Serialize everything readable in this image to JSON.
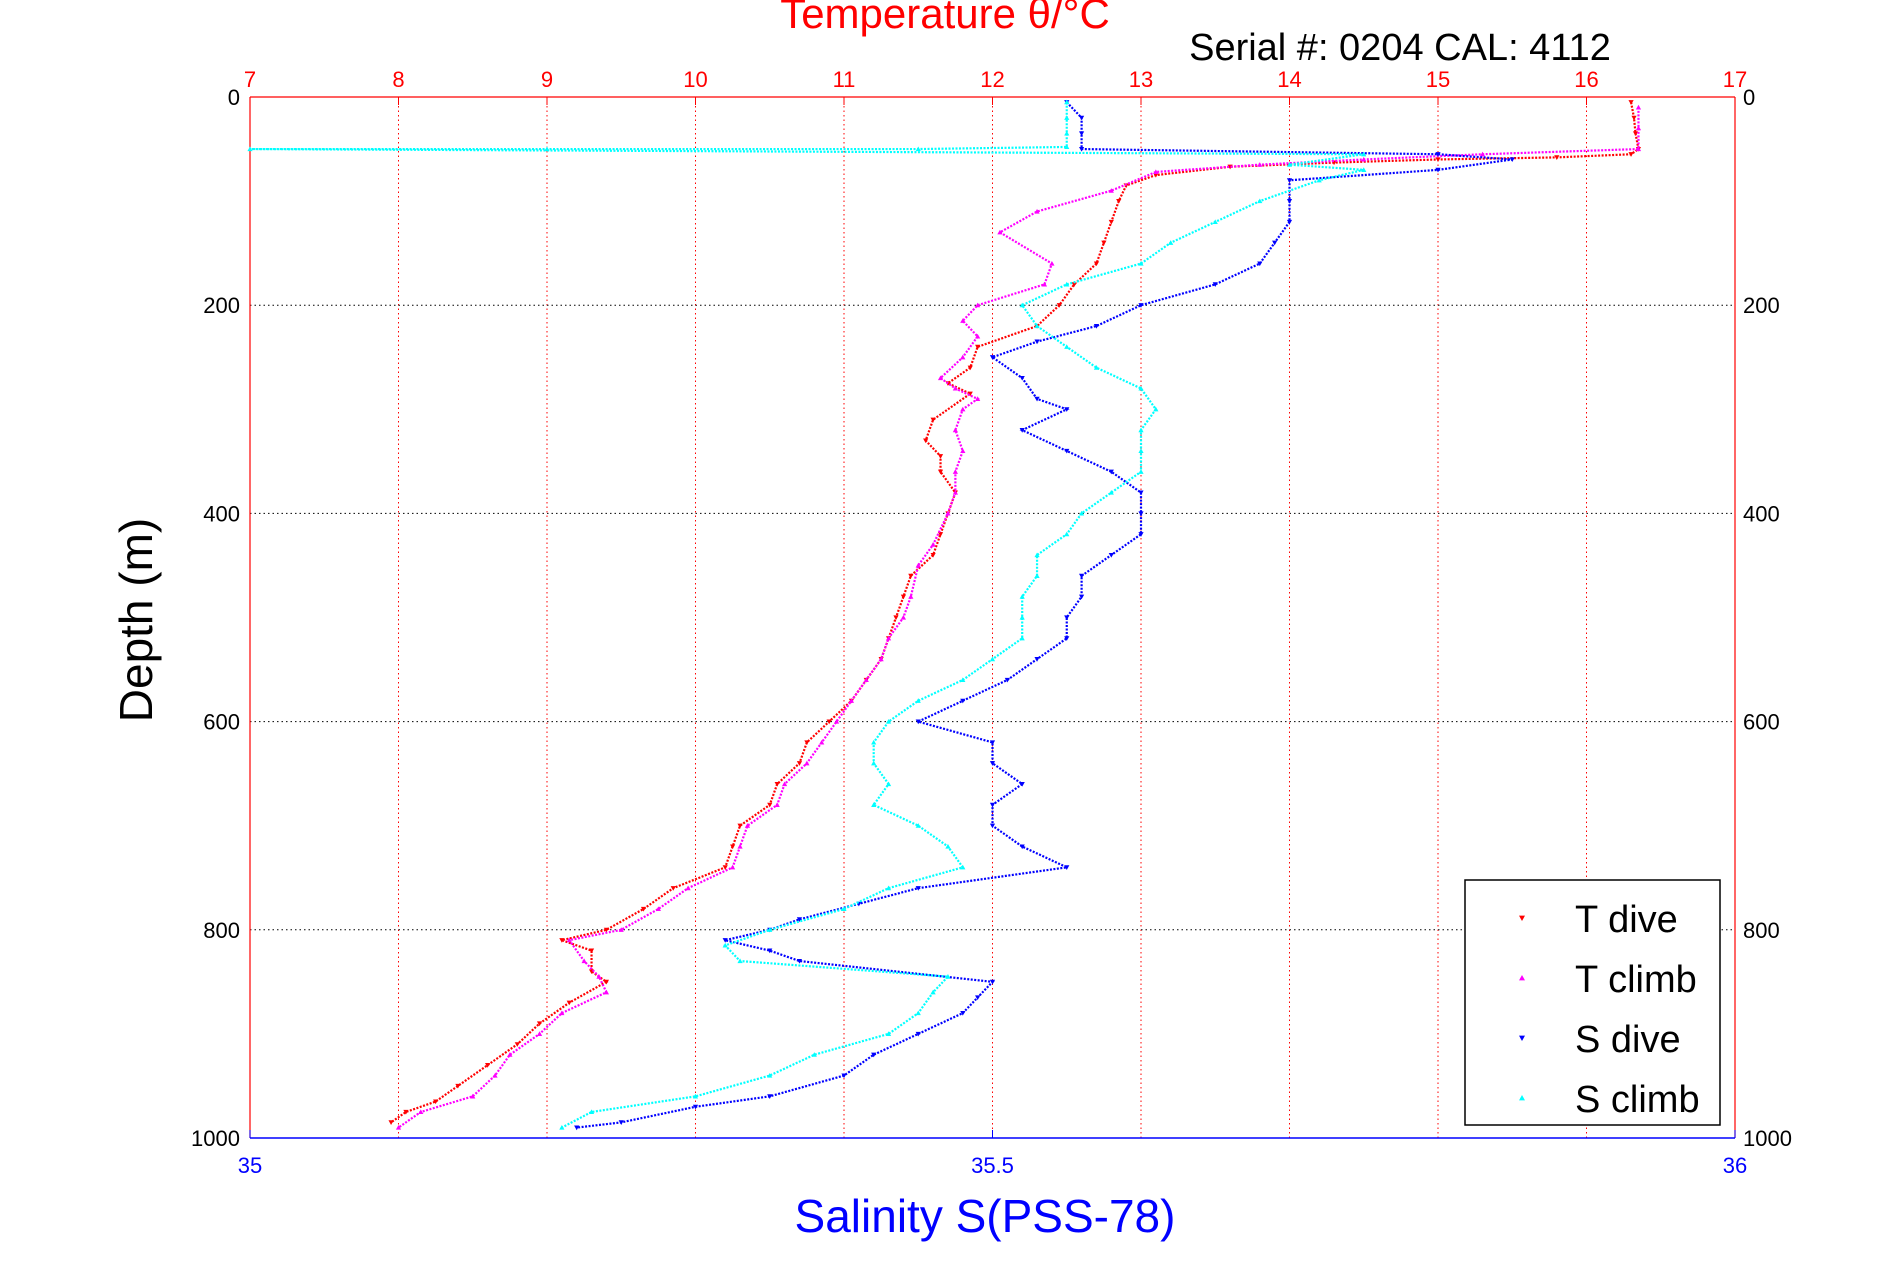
{
  "chart_data": {
    "type": "scatter",
    "title": "Temperature θ/°C",
    "subtitle": "Serial #: 0204  CAL: 4112",
    "xlabel": "Salinity S(PSS-78)",
    "ylabel": "Depth (m)",
    "temp_axis": {
      "min": 7,
      "max": 17,
      "ticks": [
        "7",
        "8",
        "9",
        "10",
        "11",
        "12",
        "13",
        "14",
        "15",
        "16",
        "17"
      ]
    },
    "sal_axis": {
      "min": 35,
      "max": 36,
      "ticks": [
        "35",
        "35.5",
        "36"
      ]
    },
    "depth_axis": {
      "min": 0,
      "max": 1000,
      "reversed": true,
      "ticks": [
        "0",
        "200",
        "400",
        "600",
        "800",
        "1000"
      ]
    },
    "grid": true,
    "legend_position": "bottom-right",
    "colors": {
      "title": "#ff0000",
      "temp_ticks": "#ff0000",
      "sal_ticks": "#0000ff",
      "xlabel": "#0000ff",
      "frame": "#ff0000",
      "bottom_axis": "#0000ff",
      "grid": "#ff0000"
    },
    "series": [
      {
        "name": "T dive",
        "axis": "temperature",
        "color": "#ff0000",
        "marker": "triangle-down",
        "points": [
          [
            16.3,
            5
          ],
          [
            16.32,
            20
          ],
          [
            16.33,
            35
          ],
          [
            16.35,
            50
          ],
          [
            16.3,
            55
          ],
          [
            15.8,
            58
          ],
          [
            15.0,
            60
          ],
          [
            14.3,
            63
          ],
          [
            13.6,
            67
          ],
          [
            13.1,
            75
          ],
          [
            12.9,
            85
          ],
          [
            12.85,
            100
          ],
          [
            12.8,
            120
          ],
          [
            12.75,
            140
          ],
          [
            12.7,
            160
          ],
          [
            12.55,
            180
          ],
          [
            12.45,
            200
          ],
          [
            12.3,
            220
          ],
          [
            11.9,
            240
          ],
          [
            11.85,
            260
          ],
          [
            11.7,
            275
          ],
          [
            11.85,
            285
          ],
          [
            11.6,
            310
          ],
          [
            11.55,
            330
          ],
          [
            11.65,
            345
          ],
          [
            11.65,
            360
          ],
          [
            11.75,
            380
          ],
          [
            11.7,
            400
          ],
          [
            11.65,
            420
          ],
          [
            11.6,
            440
          ],
          [
            11.45,
            460
          ],
          [
            11.4,
            480
          ],
          [
            11.35,
            500
          ],
          [
            11.3,
            520
          ],
          [
            11.25,
            540
          ],
          [
            11.15,
            560
          ],
          [
            11.05,
            580
          ],
          [
            10.9,
            600
          ],
          [
            10.75,
            620
          ],
          [
            10.7,
            640
          ],
          [
            10.55,
            660
          ],
          [
            10.5,
            680
          ],
          [
            10.3,
            700
          ],
          [
            10.25,
            720
          ],
          [
            10.2,
            740
          ],
          [
            9.85,
            760
          ],
          [
            9.65,
            780
          ],
          [
            9.4,
            800
          ],
          [
            9.1,
            810
          ],
          [
            9.3,
            820
          ],
          [
            9.3,
            840
          ],
          [
            9.4,
            850
          ],
          [
            9.15,
            870
          ],
          [
            8.95,
            890
          ],
          [
            8.8,
            910
          ],
          [
            8.6,
            930
          ],
          [
            8.4,
            950
          ],
          [
            8.25,
            965
          ],
          [
            8.05,
            975
          ],
          [
            7.95,
            985
          ]
        ]
      },
      {
        "name": "T climb",
        "axis": "temperature",
        "color": "#ff00ff",
        "marker": "triangle-up",
        "points": [
          [
            16.35,
            10
          ],
          [
            16.35,
            30
          ],
          [
            16.35,
            50
          ],
          [
            15.3,
            55
          ],
          [
            14.5,
            60
          ],
          [
            13.8,
            65
          ],
          [
            13.1,
            72
          ],
          [
            12.8,
            90
          ],
          [
            12.3,
            110
          ],
          [
            12.05,
            130
          ],
          [
            12.4,
            160
          ],
          [
            12.35,
            180
          ],
          [
            11.9,
            200
          ],
          [
            11.8,
            215
          ],
          [
            11.9,
            230
          ],
          [
            11.8,
            250
          ],
          [
            11.65,
            270
          ],
          [
            11.75,
            280
          ],
          [
            11.9,
            290
          ],
          [
            11.8,
            300
          ],
          [
            11.75,
            320
          ],
          [
            11.8,
            340
          ],
          [
            11.75,
            360
          ],
          [
            11.75,
            380
          ],
          [
            11.7,
            400
          ],
          [
            11.6,
            430
          ],
          [
            11.5,
            450
          ],
          [
            11.45,
            480
          ],
          [
            11.4,
            500
          ],
          [
            11.3,
            520
          ],
          [
            11.25,
            540
          ],
          [
            11.15,
            560
          ],
          [
            11.05,
            580
          ],
          [
            10.95,
            600
          ],
          [
            10.85,
            620
          ],
          [
            10.75,
            640
          ],
          [
            10.6,
            660
          ],
          [
            10.55,
            680
          ],
          [
            10.35,
            700
          ],
          [
            10.3,
            720
          ],
          [
            10.25,
            740
          ],
          [
            9.95,
            760
          ],
          [
            9.75,
            780
          ],
          [
            9.5,
            800
          ],
          [
            9.15,
            810
          ],
          [
            9.25,
            830
          ],
          [
            9.35,
            845
          ],
          [
            9.4,
            860
          ],
          [
            9.1,
            880
          ],
          [
            8.95,
            900
          ],
          [
            8.75,
            920
          ],
          [
            8.65,
            940
          ],
          [
            8.5,
            960
          ],
          [
            8.15,
            975
          ],
          [
            8.0,
            990
          ]
        ]
      },
      {
        "name": "S dive",
        "axis": "salinity",
        "color": "#0000ff",
        "marker": "triangle-down",
        "points": [
          [
            35.55,
            5
          ],
          [
            35.56,
            20
          ],
          [
            35.56,
            35
          ],
          [
            35.56,
            50
          ],
          [
            35.8,
            55
          ],
          [
            35.85,
            60
          ],
          [
            35.8,
            70
          ],
          [
            35.7,
            80
          ],
          [
            35.7,
            100
          ],
          [
            35.7,
            120
          ],
          [
            35.69,
            140
          ],
          [
            35.68,
            160
          ],
          [
            35.65,
            180
          ],
          [
            35.6,
            200
          ],
          [
            35.57,
            220
          ],
          [
            35.53,
            235
          ],
          [
            35.5,
            250
          ],
          [
            35.52,
            270
          ],
          [
            35.53,
            290
          ],
          [
            35.55,
            300
          ],
          [
            35.52,
            320
          ],
          [
            35.55,
            340
          ],
          [
            35.58,
            360
          ],
          [
            35.6,
            380
          ],
          [
            35.6,
            400
          ],
          [
            35.6,
            420
          ],
          [
            35.58,
            440
          ],
          [
            35.56,
            460
          ],
          [
            35.56,
            480
          ],
          [
            35.55,
            500
          ],
          [
            35.55,
            520
          ],
          [
            35.53,
            540
          ],
          [
            35.51,
            560
          ],
          [
            35.48,
            580
          ],
          [
            35.45,
            600
          ],
          [
            35.5,
            620
          ],
          [
            35.5,
            640
          ],
          [
            35.52,
            660
          ],
          [
            35.5,
            680
          ],
          [
            35.5,
            700
          ],
          [
            35.52,
            720
          ],
          [
            35.55,
            740
          ],
          [
            35.45,
            760
          ],
          [
            35.41,
            775
          ],
          [
            35.37,
            790
          ],
          [
            35.35,
            800
          ],
          [
            35.32,
            810
          ],
          [
            35.35,
            820
          ],
          [
            35.37,
            830
          ],
          [
            35.5,
            850
          ],
          [
            35.49,
            865
          ],
          [
            35.48,
            880
          ],
          [
            35.45,
            900
          ],
          [
            35.42,
            920
          ],
          [
            35.4,
            940
          ],
          [
            35.35,
            960
          ],
          [
            35.3,
            970
          ],
          [
            35.25,
            985
          ],
          [
            35.22,
            990
          ]
        ]
      },
      {
        "name": "S climb",
        "axis": "salinity",
        "color": "#00ffff",
        "marker": "triangle-up",
        "points": [
          [
            35.55,
            5
          ],
          [
            35.55,
            20
          ],
          [
            35.55,
            35
          ],
          [
            35.55,
            48
          ],
          [
            35.45,
            50
          ],
          [
            35.2,
            50
          ],
          [
            35.0,
            50
          ],
          [
            35.75,
            55
          ],
          [
            35.7,
            65
          ],
          [
            35.75,
            70
          ],
          [
            35.72,
            80
          ],
          [
            35.68,
            100
          ],
          [
            35.65,
            120
          ],
          [
            35.62,
            140
          ],
          [
            35.6,
            160
          ],
          [
            35.55,
            180
          ],
          [
            35.52,
            200
          ],
          [
            35.53,
            220
          ],
          [
            35.55,
            240
          ],
          [
            35.57,
            260
          ],
          [
            35.6,
            280
          ],
          [
            35.61,
            300
          ],
          [
            35.6,
            320
          ],
          [
            35.6,
            340
          ],
          [
            35.6,
            360
          ],
          [
            35.58,
            380
          ],
          [
            35.56,
            400
          ],
          [
            35.55,
            420
          ],
          [
            35.53,
            440
          ],
          [
            35.53,
            460
          ],
          [
            35.52,
            480
          ],
          [
            35.52,
            500
          ],
          [
            35.52,
            520
          ],
          [
            35.5,
            540
          ],
          [
            35.48,
            560
          ],
          [
            35.45,
            580
          ],
          [
            35.43,
            600
          ],
          [
            35.42,
            620
          ],
          [
            35.42,
            640
          ],
          [
            35.43,
            660
          ],
          [
            35.42,
            680
          ],
          [
            35.45,
            700
          ],
          [
            35.47,
            720
          ],
          [
            35.48,
            740
          ],
          [
            35.43,
            760
          ],
          [
            35.4,
            780
          ],
          [
            35.35,
            800
          ],
          [
            35.32,
            815
          ],
          [
            35.33,
            830
          ],
          [
            35.47,
            845
          ],
          [
            35.46,
            860
          ],
          [
            35.45,
            880
          ],
          [
            35.43,
            900
          ],
          [
            35.38,
            920
          ],
          [
            35.35,
            940
          ],
          [
            35.3,
            960
          ],
          [
            35.23,
            975
          ],
          [
            35.21,
            990
          ]
        ]
      }
    ]
  }
}
